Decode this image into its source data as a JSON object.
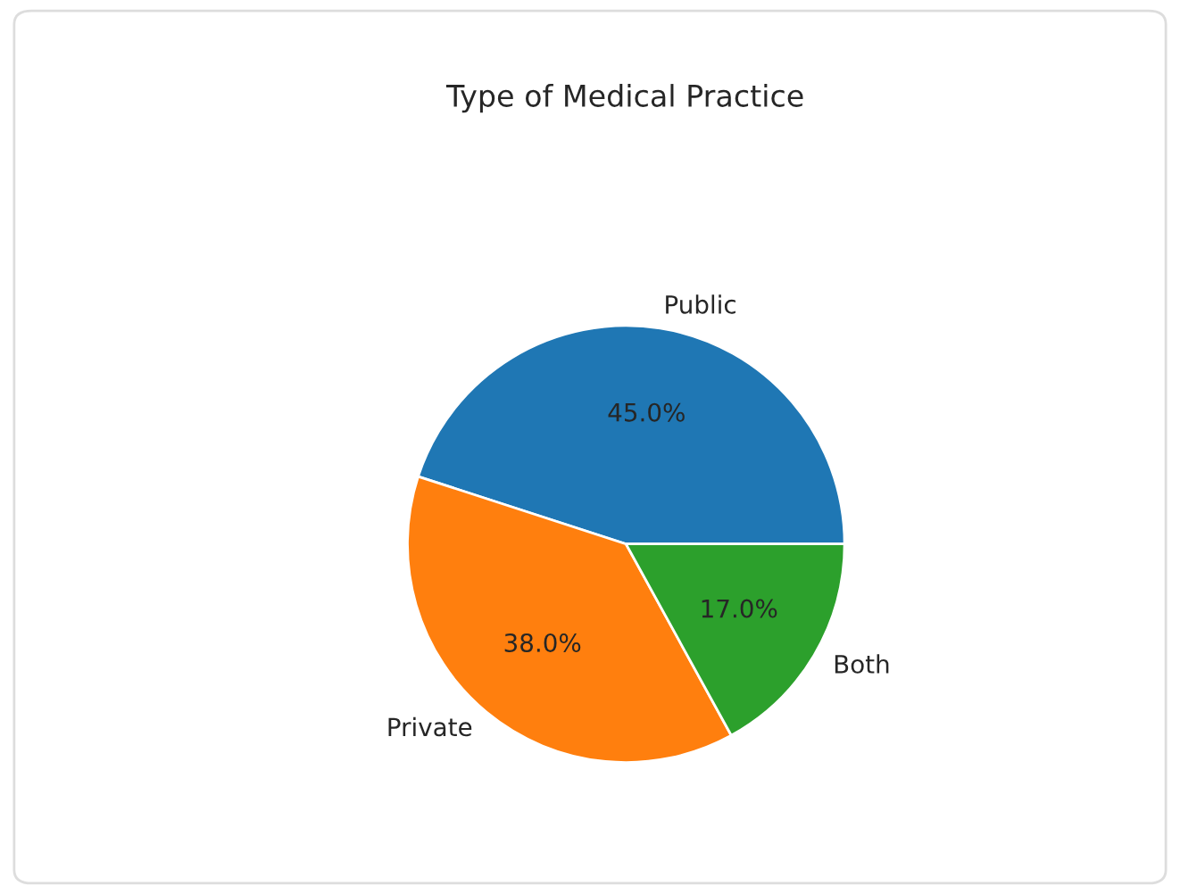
{
  "chart_data": {
    "type": "pie",
    "title": "Type of Medical Practice",
    "categories": [
      "Public",
      "Private",
      "Both"
    ],
    "values": [
      45,
      38,
      17
    ],
    "value_labels": [
      "45.0%",
      "38.0%",
      "17.0%"
    ],
    "colors": [
      "#1f77b4",
      "#ff7f0e",
      "#2ca02c"
    ]
  }
}
